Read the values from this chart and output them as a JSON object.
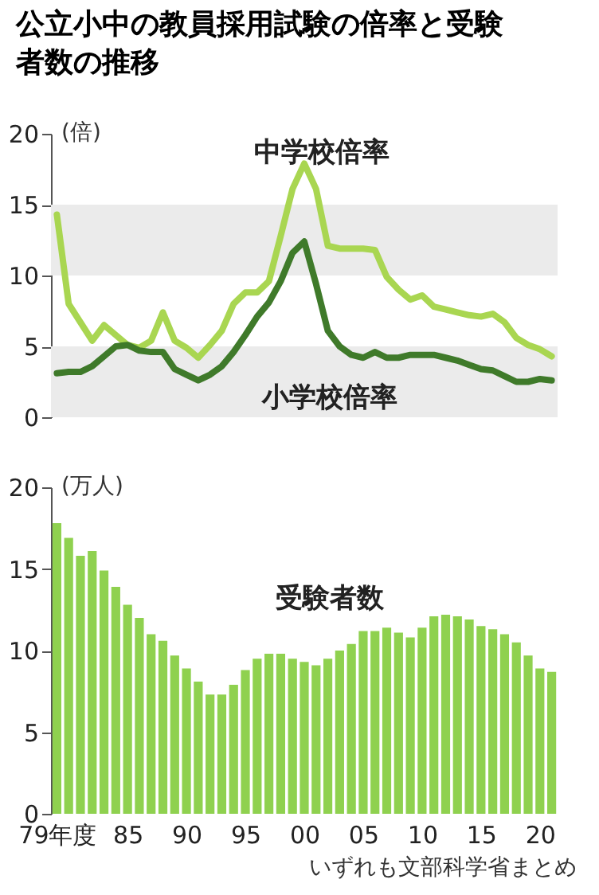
{
  "chart_data": [
    {
      "type": "line",
      "title": "公立小中の教員採用試験の倍率と受験者数の推移",
      "ylabel": "(倍)",
      "categories": [
        null,
        null,
        null,
        null,
        null,
        null,
        null,
        null,
        null,
        null,
        null,
        null,
        null,
        null,
        null,
        null,
        null,
        null,
        null,
        null,
        null,
        null,
        null,
        null,
        null,
        null,
        null,
        null,
        null,
        null,
        null,
        null,
        null,
        null,
        null,
        null,
        null,
        null,
        null,
        null,
        null,
        null,
        null
      ],
      "ylim": [
        0,
        20
      ],
      "yticks": [
        0,
        5,
        10,
        15,
        20
      ],
      "tick_labels": "y",
      "bands": [
        {
          "axis": "y",
          "from": 0,
          "to": 5,
          "color": "#ebebeb"
        },
        {
          "axis": "y",
          "from": 10,
          "to": 15,
          "color": "#ebebeb"
        }
      ],
      "series": [
        {
          "name": "中学校倍率",
          "color": "#a9d651",
          "values": [
            14.3,
            8.0,
            6.7,
            5.4,
            6.5,
            5.8,
            5.1,
            4.9,
            5.4,
            7.4,
            5.4,
            4.9,
            4.2,
            5.1,
            6.1,
            8.0,
            8.8,
            8.8,
            9.6,
            12.8,
            16.1,
            17.9,
            16.1,
            12.1,
            11.9,
            11.9,
            11.9,
            11.8,
            9.9,
            9.0,
            8.3,
            8.6,
            7.8,
            7.6,
            7.4,
            7.2,
            7.1,
            7.3,
            6.7,
            5.6,
            5.1,
            4.8,
            4.3
          ]
        },
        {
          "name": "小学校倍率",
          "color": "#3f7a2a",
          "values": [
            3.1,
            3.2,
            3.2,
            3.6,
            4.3,
            5.0,
            5.1,
            4.7,
            4.6,
            4.6,
            3.4,
            3.0,
            2.6,
            3.0,
            3.6,
            4.6,
            5.8,
            7.1,
            8.1,
            9.6,
            11.6,
            12.4,
            9.4,
            6.1,
            5.0,
            4.4,
            4.2,
            4.6,
            4.2,
            4.2,
            4.4,
            4.4,
            4.4,
            4.2,
            4.0,
            3.7,
            3.4,
            3.3,
            2.9,
            2.5,
            2.5,
            2.7,
            2.6
          ]
        }
      ]
    },
    {
      "type": "bar",
      "ylabel": "(万人)",
      "categories": [
        "79年度",
        null,
        null,
        null,
        null,
        null,
        "85",
        null,
        null,
        null,
        null,
        "90",
        null,
        null,
        null,
        null,
        "95",
        null,
        null,
        null,
        null,
        "00",
        null,
        null,
        null,
        null,
        "05",
        null,
        null,
        null,
        null,
        "10",
        null,
        null,
        null,
        null,
        "15",
        null,
        null,
        null,
        null,
        "20",
        null
      ],
      "ylim": [
        0,
        20
      ],
      "yticks": [
        0,
        5,
        10,
        15,
        20
      ],
      "series": [
        {
          "name": "受験者数",
          "color": "#8fd14f",
          "values": [
            17.8,
            16.9,
            15.8,
            16.1,
            14.9,
            13.9,
            12.8,
            12.0,
            11.0,
            10.6,
            9.7,
            8.9,
            8.1,
            7.3,
            7.3,
            7.9,
            8.8,
            9.5,
            9.8,
            9.8,
            9.5,
            9.3,
            9.1,
            9.5,
            10.0,
            10.4,
            11.2,
            11.2,
            11.4,
            11.1,
            10.8,
            11.4,
            12.1,
            12.2,
            12.1,
            11.9,
            11.5,
            11.3,
            11.0,
            10.5,
            9.7,
            8.9,
            8.7
          ]
        }
      ],
      "annotations": [
        "いずれも文部科学省まとめ"
      ]
    }
  ]
}
